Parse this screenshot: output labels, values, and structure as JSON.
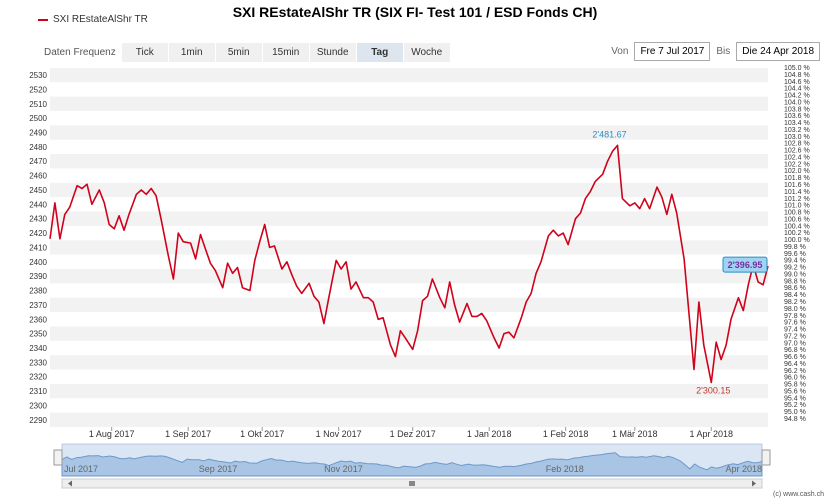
{
  "title": "SXI REstateAlShr TR (SIX FI- Test 101 / ESD Fonds CH)",
  "legend": {
    "label": "SXI REstateAlShr TR",
    "color": "#d0021b"
  },
  "toolbar": {
    "label": "Daten Frequenz",
    "buttons": [
      "Tick",
      "1min",
      "5min",
      "15min",
      "Stunde",
      "Tag",
      "Woche"
    ],
    "active": "Tag"
  },
  "date_range": {
    "from_label": "Von",
    "from": "Fre 7 Jul 2017",
    "to_label": "Bis",
    "to": "Die 24 Apr 2018"
  },
  "credit": "(c) www.cash.ch",
  "chart_data": {
    "type": "line",
    "title": "SXI REstateAlShr TR (SIX FI- Test 101 / ESD Fonds CH)",
    "x_range": [
      "2017-07-07",
      "2018-04-24"
    ],
    "ylim": [
      2285,
      2537
    ],
    "y_ticks": [
      2290,
      2300,
      2310,
      2320,
      2330,
      2340,
      2350,
      2360,
      2370,
      2380,
      2390,
      2400,
      2410,
      2420,
      2430,
      2440,
      2450,
      2460,
      2470,
      2480,
      2490,
      2500,
      2510,
      2520,
      2530
    ],
    "y2_ticks": [
      "94.8 %",
      "95.0 %",
      "95.2 %",
      "95.4 %",
      "95.6 %",
      "95.8 %",
      "96.0 %",
      "96.2 %",
      "96.4 %",
      "96.6 %",
      "96.8 %",
      "97.0 %",
      "97.2 %",
      "97.4 %",
      "97.6 %",
      "97.8 %",
      "98.0 %",
      "98.2 %",
      "98.4 %",
      "98.6 %",
      "98.8 %",
      "99.0 %",
      "99.2 %",
      "99.4 %",
      "99.6 %",
      "99.8 %",
      "100.0 %",
      "100.2 %",
      "100.4 %",
      "100.6 %",
      "100.8 %",
      "101.0 %",
      "101.2 %",
      "101.4 %",
      "101.6 %",
      "101.8 %",
      "102.0 %",
      "102.2 %",
      "102.4 %",
      "102.6 %",
      "102.8 %",
      "103.0 %",
      "103.2 %",
      "103.4 %",
      "103.6 %",
      "103.8 %",
      "104.0 %",
      "104.2 %",
      "104.4 %",
      "104.6 %",
      "104.8 %",
      "105.0 %"
    ],
    "x_ticks": [
      {
        "label": "1 Aug 2017",
        "date": "2017-08-01"
      },
      {
        "label": "1 Sep 2017",
        "date": "2017-09-01"
      },
      {
        "label": "1 Okt 2017",
        "date": "2017-10-01"
      },
      {
        "label": "1 Nov 2017",
        "date": "2017-11-01"
      },
      {
        "label": "1 Dez 2017",
        "date": "2017-12-01"
      },
      {
        "label": "1 Jan 2018",
        "date": "2018-01-01"
      },
      {
        "label": "1 Feb 2018",
        "date": "2018-02-01"
      },
      {
        "label": "1 Mär 2018",
        "date": "2018-03-01"
      },
      {
        "label": "1 Apr 2018",
        "date": "2018-04-01"
      }
    ],
    "grid": true,
    "series": [
      {
        "name": "SXI REstateAlShr TR",
        "color": "#d0021b",
        "points": [
          [
            "2017-07-07",
            2416
          ],
          [
            "2017-07-09",
            2441
          ],
          [
            "2017-07-11",
            2416
          ],
          [
            "2017-07-13",
            2433
          ],
          [
            "2017-07-15",
            2438
          ],
          [
            "2017-07-18",
            2453
          ],
          [
            "2017-07-20",
            2451
          ],
          [
            "2017-07-22",
            2454
          ],
          [
            "2017-07-24",
            2440
          ],
          [
            "2017-07-27",
            2450
          ],
          [
            "2017-07-29",
            2441
          ],
          [
            "2017-07-31",
            2426
          ],
          [
            "2017-08-02",
            2423
          ],
          [
            "2017-08-04",
            2432
          ],
          [
            "2017-08-06",
            2422
          ],
          [
            "2017-08-08",
            2433
          ],
          [
            "2017-08-11",
            2447
          ],
          [
            "2017-08-13",
            2450
          ],
          [
            "2017-08-15",
            2447
          ],
          [
            "2017-08-17",
            2451
          ],
          [
            "2017-08-19",
            2446
          ],
          [
            "2017-08-21",
            2430
          ],
          [
            "2017-08-24",
            2404
          ],
          [
            "2017-08-26",
            2388
          ],
          [
            "2017-08-28",
            2420
          ],
          [
            "2017-08-30",
            2414
          ],
          [
            "2017-09-02",
            2413
          ],
          [
            "2017-09-04",
            2402
          ],
          [
            "2017-09-06",
            2419
          ],
          [
            "2017-09-08",
            2409
          ],
          [
            "2017-09-10",
            2399
          ],
          [
            "2017-09-12",
            2394
          ],
          [
            "2017-09-15",
            2382
          ],
          [
            "2017-09-17",
            2399
          ],
          [
            "2017-09-19",
            2392
          ],
          [
            "2017-09-21",
            2396
          ],
          [
            "2017-09-23",
            2382
          ],
          [
            "2017-09-26",
            2380
          ],
          [
            "2017-09-28",
            2401
          ],
          [
            "2017-09-30",
            2414
          ],
          [
            "2017-10-02",
            2426
          ],
          [
            "2017-10-04",
            2410
          ],
          [
            "2017-10-06",
            2411
          ],
          [
            "2017-10-09",
            2395
          ],
          [
            "2017-10-11",
            2400
          ],
          [
            "2017-10-13",
            2391
          ],
          [
            "2017-10-15",
            2383
          ],
          [
            "2017-10-17",
            2378
          ],
          [
            "2017-10-20",
            2385
          ],
          [
            "2017-10-22",
            2376
          ],
          [
            "2017-10-24",
            2372
          ],
          [
            "2017-10-26",
            2357
          ],
          [
            "2017-10-28",
            2375
          ],
          [
            "2017-10-31",
            2401
          ],
          [
            "2017-11-02",
            2395
          ],
          [
            "2017-11-04",
            2400
          ],
          [
            "2017-11-06",
            2381
          ],
          [
            "2017-11-08",
            2386
          ],
          [
            "2017-11-11",
            2375
          ],
          [
            "2017-11-13",
            2375
          ],
          [
            "2017-11-15",
            2372
          ],
          [
            "2017-11-17",
            2360
          ],
          [
            "2017-11-19",
            2361
          ],
          [
            "2017-11-22",
            2342
          ],
          [
            "2017-11-24",
            2334
          ],
          [
            "2017-11-26",
            2352
          ],
          [
            "2017-11-28",
            2347
          ],
          [
            "2017-12-01",
            2339
          ],
          [
            "2017-12-03",
            2352
          ],
          [
            "2017-12-05",
            2373
          ],
          [
            "2017-12-07",
            2376
          ],
          [
            "2017-12-09",
            2388
          ],
          [
            "2017-12-12",
            2375
          ],
          [
            "2017-12-14",
            2368
          ],
          [
            "2017-12-16",
            2386
          ],
          [
            "2017-12-18",
            2370
          ],
          [
            "2017-12-20",
            2358
          ],
          [
            "2017-12-23",
            2371
          ],
          [
            "2017-12-25",
            2362
          ],
          [
            "2017-12-27",
            2362
          ],
          [
            "2017-12-29",
            2364
          ],
          [
            "2017-12-31",
            2359
          ],
          [
            "2018-01-03",
            2347
          ],
          [
            "2018-01-05",
            2340
          ],
          [
            "2018-01-07",
            2350
          ],
          [
            "2018-01-09",
            2351
          ],
          [
            "2018-01-11",
            2347
          ],
          [
            "2018-01-14",
            2361
          ],
          [
            "2018-01-16",
            2372
          ],
          [
            "2018-01-18",
            2378
          ],
          [
            "2018-01-20",
            2392
          ],
          [
            "2018-01-22",
            2400
          ],
          [
            "2018-01-25",
            2418
          ],
          [
            "2018-01-27",
            2422
          ],
          [
            "2018-01-29",
            2418
          ],
          [
            "2018-01-31",
            2420
          ],
          [
            "2018-02-02",
            2412
          ],
          [
            "2018-02-05",
            2430
          ],
          [
            "2018-02-07",
            2434
          ],
          [
            "2018-02-09",
            2444
          ],
          [
            "2018-02-11",
            2449
          ],
          [
            "2018-02-13",
            2456
          ],
          [
            "2018-02-16",
            2461
          ],
          [
            "2018-02-18",
            2470
          ],
          [
            "2018-02-20",
            2477
          ],
          [
            "2018-02-22",
            2481
          ],
          [
            "2018-02-24",
            2444
          ],
          [
            "2018-02-27",
            2439
          ],
          [
            "2018-03-01",
            2441
          ],
          [
            "2018-03-03",
            2437
          ],
          [
            "2018-03-05",
            2444
          ],
          [
            "2018-03-07",
            2437
          ],
          [
            "2018-03-10",
            2452
          ],
          [
            "2018-03-12",
            2445
          ],
          [
            "2018-03-14",
            2433
          ],
          [
            "2018-03-16",
            2447
          ],
          [
            "2018-03-18",
            2434
          ],
          [
            "2018-03-21",
            2402
          ],
          [
            "2018-03-23",
            2364
          ],
          [
            "2018-03-25",
            2325
          ],
          [
            "2018-03-27",
            2372
          ],
          [
            "2018-03-29",
            2342
          ],
          [
            "2018-04-01",
            2316
          ],
          [
            "2018-04-03",
            2344
          ],
          [
            "2018-04-05",
            2332
          ],
          [
            "2018-04-07",
            2342
          ],
          [
            "2018-04-09",
            2360
          ],
          [
            "2018-04-12",
            2375
          ],
          [
            "2018-04-14",
            2366
          ],
          [
            "2018-04-16",
            2384
          ],
          [
            "2018-04-18",
            2398
          ],
          [
            "2018-04-20",
            2386
          ],
          [
            "2018-04-22",
            2384
          ],
          [
            "2018-04-24",
            2397
          ]
        ]
      }
    ]
  }
}
